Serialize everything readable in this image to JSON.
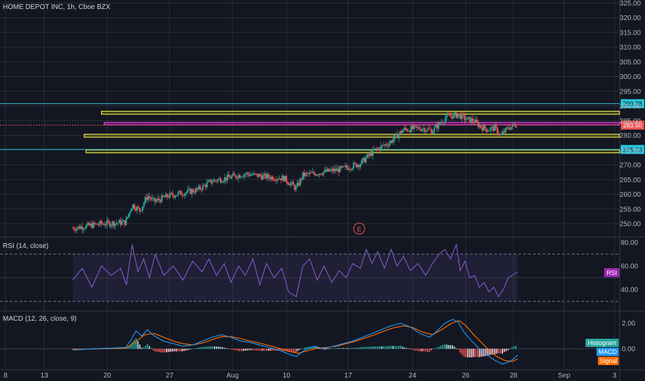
{
  "chart_data": {
    "type": "candlestick",
    "title": "HOME DEPOT INC, 1h, Cboe BZX",
    "time_labels": [
      "8",
      "13",
      "20",
      "27",
      "Aug",
      "10",
      "17",
      "24",
      "26",
      "28",
      "Sep",
      "3"
    ],
    "price": {
      "ylim": [
        246,
        326
      ],
      "tick_labels": [
        "250.00",
        "255.00",
        "260.00",
        "265.00",
        "270.00",
        "275.00",
        "280.00",
        "285.00",
        "290.00",
        "295.00",
        "300.00",
        "305.00",
        "310.00",
        "315.00",
        "320.00",
        "325.00"
      ],
      "tick_values": [
        250,
        255,
        260,
        265,
        270,
        275,
        280,
        285,
        290,
        295,
        300,
        305,
        310,
        315,
        320,
        325
      ],
      "horizontal_lines": [
        {
          "value": 290.78,
          "label": "290.78",
          "color": "#26c6da"
        },
        {
          "value": 283.5,
          "label": "283.50",
          "color": "#ef5350"
        },
        {
          "value": 275.23,
          "label": "275.23",
          "color": "#26c6da"
        }
      ],
      "zones": [
        {
          "start": 10.0,
          "end": 24.0,
          "low": 287.2,
          "high": 288.2,
          "color": "#e5e54c",
          "fill": "rgba(128,128,0,0.35)"
        },
        {
          "start": 10.3,
          "end": 24.0,
          "low": 283.6,
          "high": 284.4,
          "color": "#e040fb",
          "fill": "rgba(233,30,99,0.30)"
        },
        {
          "start": 8.2,
          "end": 24.0,
          "low": 279.4,
          "high": 280.4,
          "color": "#e5e54c",
          "fill": "rgba(128,128,0,0.35)"
        },
        {
          "start": 8.4,
          "end": 24.0,
          "low": 274.1,
          "high": 275.1,
          "color": "#e5e54c",
          "fill": "rgba(128,128,0,0.35)"
        }
      ],
      "event_marker": "E",
      "series": [
        {
          "x": 7.0,
          "y": 248.5
        },
        {
          "x": 10.0,
          "y": 250.0
        },
        {
          "x": 12.5,
          "y": 250.5
        },
        {
          "x": 13.2,
          "y": 256.5
        },
        {
          "x": 14.0,
          "y": 254.5
        },
        {
          "x": 14.8,
          "y": 259.5
        },
        {
          "x": 15.5,
          "y": 257.5
        },
        {
          "x": 17.0,
          "y": 259.5
        },
        {
          "x": 20.0,
          "y": 261.5
        },
        {
          "x": 21.5,
          "y": 264.5
        },
        {
          "x": 23.0,
          "y": 265.5
        },
        {
          "x": 25.0,
          "y": 267.0
        },
        {
          "x": 27.0,
          "y": 266.0
        },
        {
          "x": 29.0,
          "y": 265.5
        },
        {
          "x": 30.3,
          "y": 262.0
        },
        {
          "x": 31.0,
          "y": 266.5
        },
        {
          "x": 33.0,
          "y": 267.5
        },
        {
          "x": 35.0,
          "y": 268.5
        },
        {
          "x": 37.0,
          "y": 270.5
        },
        {
          "x": 38.5,
          "y": 275.0
        },
        {
          "x": 40.0,
          "y": 277.5
        },
        {
          "x": 41.5,
          "y": 282.0
        },
        {
          "x": 43.5,
          "y": 282.5
        },
        {
          "x": 44.5,
          "y": 281.5
        },
        {
          "x": 46.0,
          "y": 286.5
        },
        {
          "x": 47.2,
          "y": 287.0
        },
        {
          "x": 48.0,
          "y": 285.5
        },
        {
          "x": 48.8,
          "y": 285.0
        },
        {
          "x": 49.5,
          "y": 283.0
        },
        {
          "x": 50.2,
          "y": 282.0
        },
        {
          "x": 51.0,
          "y": 282.5
        },
        {
          "x": 51.6,
          "y": 280.0
        },
        {
          "x": 52.4,
          "y": 282.5
        },
        {
          "x": 53.4,
          "y": 284.0
        }
      ]
    },
    "rsi": {
      "title": "RSI (14, close)",
      "badge": "RSI",
      "ylim": [
        23,
        84
      ],
      "tick_labels": [
        "40.00",
        "60.00",
        "80.00"
      ],
      "tick_values": [
        40,
        60,
        80
      ],
      "bands": [
        70,
        30
      ],
      "series": [
        {
          "x": 7.0,
          "y": 48
        },
        {
          "x": 8.0,
          "y": 58
        },
        {
          "x": 9.0,
          "y": 42
        },
        {
          "x": 10.0,
          "y": 60
        },
        {
          "x": 11.0,
          "y": 52
        },
        {
          "x": 12.0,
          "y": 58
        },
        {
          "x": 12.6,
          "y": 44
        },
        {
          "x": 13.2,
          "y": 78
        },
        {
          "x": 13.8,
          "y": 55
        },
        {
          "x": 14.4,
          "y": 66
        },
        {
          "x": 15.0,
          "y": 50
        },
        {
          "x": 15.6,
          "y": 70
        },
        {
          "x": 16.5,
          "y": 52
        },
        {
          "x": 17.5,
          "y": 60
        },
        {
          "x": 18.5,
          "y": 48
        },
        {
          "x": 19.5,
          "y": 64
        },
        {
          "x": 20.5,
          "y": 55
        },
        {
          "x": 21.2,
          "y": 66
        },
        {
          "x": 22.0,
          "y": 52
        },
        {
          "x": 22.8,
          "y": 62
        },
        {
          "x": 23.5,
          "y": 46
        },
        {
          "x": 24.3,
          "y": 60
        },
        {
          "x": 25.0,
          "y": 52
        },
        {
          "x": 25.8,
          "y": 66
        },
        {
          "x": 26.5,
          "y": 44
        },
        {
          "x": 27.2,
          "y": 62
        },
        {
          "x": 28.0,
          "y": 50
        },
        {
          "x": 28.8,
          "y": 58
        },
        {
          "x": 29.5,
          "y": 38
        },
        {
          "x": 30.3,
          "y": 34
        },
        {
          "x": 31.0,
          "y": 60
        },
        {
          "x": 31.7,
          "y": 66
        },
        {
          "x": 32.5,
          "y": 48
        },
        {
          "x": 33.2,
          "y": 60
        },
        {
          "x": 34.0,
          "y": 46
        },
        {
          "x": 34.8,
          "y": 56
        },
        {
          "x": 35.5,
          "y": 50
        },
        {
          "x": 36.2,
          "y": 62
        },
        {
          "x": 37.0,
          "y": 58
        },
        {
          "x": 37.6,
          "y": 74
        },
        {
          "x": 38.2,
          "y": 62
        },
        {
          "x": 38.8,
          "y": 72
        },
        {
          "x": 39.5,
          "y": 58
        },
        {
          "x": 40.2,
          "y": 74
        },
        {
          "x": 40.8,
          "y": 60
        },
        {
          "x": 41.5,
          "y": 68
        },
        {
          "x": 42.2,
          "y": 56
        },
        {
          "x": 43.0,
          "y": 62
        },
        {
          "x": 43.8,
          "y": 52
        },
        {
          "x": 44.5,
          "y": 62
        },
        {
          "x": 45.2,
          "y": 70
        },
        {
          "x": 45.8,
          "y": 74
        },
        {
          "x": 46.4,
          "y": 66
        },
        {
          "x": 47.0,
          "y": 78
        },
        {
          "x": 47.4,
          "y": 56
        },
        {
          "x": 47.9,
          "y": 64
        },
        {
          "x": 48.4,
          "y": 50
        },
        {
          "x": 48.9,
          "y": 52
        },
        {
          "x": 49.4,
          "y": 42
        },
        {
          "x": 49.9,
          "y": 46
        },
        {
          "x": 50.4,
          "y": 38
        },
        {
          "x": 50.9,
          "y": 42
        },
        {
          "x": 51.4,
          "y": 34
        },
        {
          "x": 51.9,
          "y": 40
        },
        {
          "x": 52.4,
          "y": 50
        },
        {
          "x": 53.0,
          "y": 53
        },
        {
          "x": 53.4,
          "y": 55
        }
      ]
    },
    "macd": {
      "title": "MACD (12, 26, close, 9)",
      "ylim": [
        -1.6,
        2.9
      ],
      "tick_labels": [
        "0.00",
        "2.00"
      ],
      "tick_values": [
        0,
        2
      ],
      "legend": [
        {
          "label": "Histogram",
          "color": "#26a69a"
        },
        {
          "label": "MACD",
          "color": "#2196f3"
        },
        {
          "label": "Signal",
          "color": "#ff6d00"
        }
      ],
      "macd_line": [
        {
          "x": 7.0,
          "y": -0.1
        },
        {
          "x": 9.0,
          "y": 0.0
        },
        {
          "x": 11.0,
          "y": 0.05
        },
        {
          "x": 12.5,
          "y": 0.1
        },
        {
          "x": 13.0,
          "y": 0.6
        },
        {
          "x": 13.6,
          "y": 1.4
        },
        {
          "x": 14.2,
          "y": 1.0
        },
        {
          "x": 14.8,
          "y": 1.5
        },
        {
          "x": 15.5,
          "y": 1.0
        },
        {
          "x": 16.5,
          "y": 0.6
        },
        {
          "x": 17.5,
          "y": 0.4
        },
        {
          "x": 18.5,
          "y": 0.2
        },
        {
          "x": 19.5,
          "y": 0.3
        },
        {
          "x": 20.5,
          "y": 0.6
        },
        {
          "x": 21.5,
          "y": 0.9
        },
        {
          "x": 22.5,
          "y": 1.1
        },
        {
          "x": 23.5,
          "y": 0.9
        },
        {
          "x": 24.5,
          "y": 0.6
        },
        {
          "x": 25.5,
          "y": 0.5
        },
        {
          "x": 26.5,
          "y": 0.3
        },
        {
          "x": 27.5,
          "y": 0.1
        },
        {
          "x": 28.5,
          "y": -0.1
        },
        {
          "x": 29.5,
          "y": -0.4
        },
        {
          "x": 30.3,
          "y": -0.6
        },
        {
          "x": 31.2,
          "y": -0.1
        },
        {
          "x": 32.2,
          "y": 0.2
        },
        {
          "x": 33.2,
          "y": 0.0
        },
        {
          "x": 34.2,
          "y": 0.2
        },
        {
          "x": 35.2,
          "y": 0.4
        },
        {
          "x": 36.2,
          "y": 0.6
        },
        {
          "x": 37.2,
          "y": 0.9
        },
        {
          "x": 38.2,
          "y": 1.2
        },
        {
          "x": 39.2,
          "y": 1.5
        },
        {
          "x": 40.2,
          "y": 1.8
        },
        {
          "x": 41.2,
          "y": 2.0
        },
        {
          "x": 42.2,
          "y": 1.7
        },
        {
          "x": 43.2,
          "y": 1.2
        },
        {
          "x": 44.2,
          "y": 0.9
        },
        {
          "x": 45.0,
          "y": 1.4
        },
        {
          "x": 45.8,
          "y": 2.0
        },
        {
          "x": 46.6,
          "y": 2.3
        },
        {
          "x": 47.2,
          "y": 2.1
        },
        {
          "x": 47.8,
          "y": 1.3
        },
        {
          "x": 48.6,
          "y": 0.6
        },
        {
          "x": 49.4,
          "y": 0.0
        },
        {
          "x": 50.2,
          "y": -0.5
        },
        {
          "x": 51.0,
          "y": -0.9
        },
        {
          "x": 51.8,
          "y": -1.2
        },
        {
          "x": 52.6,
          "y": -1.0
        },
        {
          "x": 53.4,
          "y": -0.5
        }
      ],
      "signal_line": [
        {
          "x": 7.0,
          "y": -0.05
        },
        {
          "x": 10.0,
          "y": 0.0
        },
        {
          "x": 12.5,
          "y": 0.05
        },
        {
          "x": 13.5,
          "y": 0.5
        },
        {
          "x": 14.5,
          "y": 1.1
        },
        {
          "x": 15.5,
          "y": 1.2
        },
        {
          "x": 16.5,
          "y": 0.9
        },
        {
          "x": 17.5,
          "y": 0.6
        },
        {
          "x": 18.5,
          "y": 0.4
        },
        {
          "x": 19.5,
          "y": 0.3
        },
        {
          "x": 20.5,
          "y": 0.45
        },
        {
          "x": 21.5,
          "y": 0.7
        },
        {
          "x": 22.5,
          "y": 0.95
        },
        {
          "x": 23.5,
          "y": 0.95
        },
        {
          "x": 24.5,
          "y": 0.8
        },
        {
          "x": 25.5,
          "y": 0.6
        },
        {
          "x": 26.5,
          "y": 0.45
        },
        {
          "x": 27.5,
          "y": 0.25
        },
        {
          "x": 28.5,
          "y": 0.05
        },
        {
          "x": 29.5,
          "y": -0.2
        },
        {
          "x": 30.5,
          "y": -0.35
        },
        {
          "x": 31.5,
          "y": -0.15
        },
        {
          "x": 32.5,
          "y": 0.05
        },
        {
          "x": 33.5,
          "y": 0.1
        },
        {
          "x": 34.5,
          "y": 0.2
        },
        {
          "x": 35.5,
          "y": 0.4
        },
        {
          "x": 36.5,
          "y": 0.6
        },
        {
          "x": 37.5,
          "y": 0.85
        },
        {
          "x": 38.5,
          "y": 1.1
        },
        {
          "x": 39.5,
          "y": 1.4
        },
        {
          "x": 40.5,
          "y": 1.65
        },
        {
          "x": 41.5,
          "y": 1.8
        },
        {
          "x": 42.5,
          "y": 1.65
        },
        {
          "x": 43.5,
          "y": 1.3
        },
        {
          "x": 44.5,
          "y": 1.1
        },
        {
          "x": 45.5,
          "y": 1.5
        },
        {
          "x": 46.5,
          "y": 2.0
        },
        {
          "x": 47.3,
          "y": 2.2
        },
        {
          "x": 48.0,
          "y": 1.8
        },
        {
          "x": 48.8,
          "y": 1.1
        },
        {
          "x": 49.6,
          "y": 0.5
        },
        {
          "x": 50.4,
          "y": -0.1
        },
        {
          "x": 51.2,
          "y": -0.6
        },
        {
          "x": 52.0,
          "y": -0.9
        },
        {
          "x": 52.8,
          "y": -1.0
        },
        {
          "x": 53.4,
          "y": -0.8
        }
      ]
    }
  },
  "colors": {
    "background": "#131722",
    "grid": "#2a2e39",
    "text": "#b2b5be",
    "candle_up": "#26a69a",
    "candle_down": "#ef5350",
    "rsi_line": "#7e57c2",
    "rsi_fill": "rgba(126,87,194,0.12)"
  }
}
